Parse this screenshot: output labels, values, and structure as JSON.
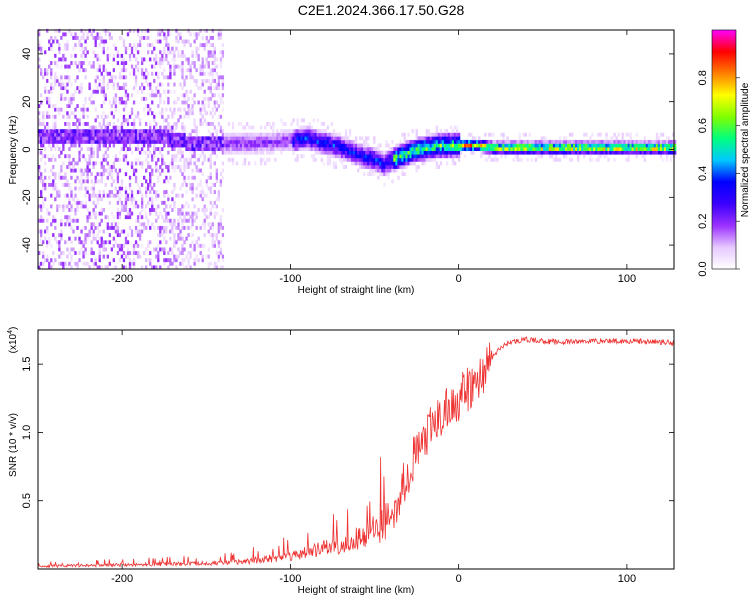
{
  "title": "C2E1.2024.366.17.50.G28",
  "chart_data": [
    {
      "type": "heatmap",
      "xlabel": "Height of straight line (km)",
      "ylabel": "Frequency (Hz)",
      "xlim": [
        -250,
        128
      ],
      "ylim": [
        -50,
        50
      ],
      "x_ticks": [
        -200,
        -100,
        0,
        100
      ],
      "y_ticks": [
        -40,
        -20,
        0,
        20,
        40
      ],
      "colorbar": {
        "label": "Normalized spectral amplitude",
        "range": [
          0,
          1
        ],
        "ticks": [
          "0.0",
          "0.2",
          "0.4",
          "0.6",
          "0.8"
        ],
        "colormap": [
          "#ffffff",
          "#e6c8ff",
          "#9b30ff",
          "#3a00ff",
          "#0000ff",
          "#00c8ff",
          "#00ff80",
          "#80ff00",
          "#ffff00",
          "#ff8000",
          "#ff0000",
          "#ff00ff"
        ]
      },
      "ridge": {
        "x": [
          -200,
          -180,
          -160,
          -140,
          -120,
          -100,
          -90,
          -80,
          -70,
          -60,
          -50,
          -45,
          -40,
          -30,
          -20,
          -10,
          0,
          10,
          20,
          40,
          60,
          80,
          100,
          128
        ],
        "y": [
          5,
          5,
          2,
          2,
          2,
          3,
          4,
          2,
          0,
          -3,
          -5,
          -7,
          -5,
          -2,
          0,
          1,
          1,
          1,
          0,
          0,
          0,
          0,
          0,
          0
        ]
      }
    },
    {
      "type": "line",
      "xlabel": "Height of straight line (km)",
      "ylabel": "SNR (10 * v/v)",
      "y_multiplier_label": "(x10",
      "y_multiplier_exp": "4",
      "xlim": [
        -250,
        128
      ],
      "ylim": [
        0,
        1.75
      ],
      "x_ticks": [
        -200,
        -100,
        0,
        100
      ],
      "y_ticks": [
        0.5,
        1.0,
        1.5
      ],
      "y_tick_labels": [
        "0.5",
        "1.0",
        "1.5"
      ],
      "series": [
        {
          "color": "#ee3333",
          "x": [
            -250,
            -200,
            -150,
            -130,
            -110,
            -100,
            -90,
            -80,
            -70,
            -60,
            -50,
            -40,
            -35,
            -30,
            -25,
            -20,
            -15,
            -10,
            -5,
            0,
            5,
            10,
            15,
            20,
            25,
            30,
            40,
            60,
            80,
            100,
            128
          ],
          "y": [
            0.02,
            0.03,
            0.04,
            0.05,
            0.08,
            0.1,
            0.12,
            0.15,
            0.18,
            0.22,
            0.28,
            0.4,
            0.55,
            0.72,
            0.85,
            0.95,
            1.05,
            1.12,
            1.18,
            1.25,
            1.3,
            1.35,
            1.45,
            1.55,
            1.62,
            1.66,
            1.68,
            1.66,
            1.67,
            1.67,
            1.66
          ]
        }
      ]
    }
  ]
}
